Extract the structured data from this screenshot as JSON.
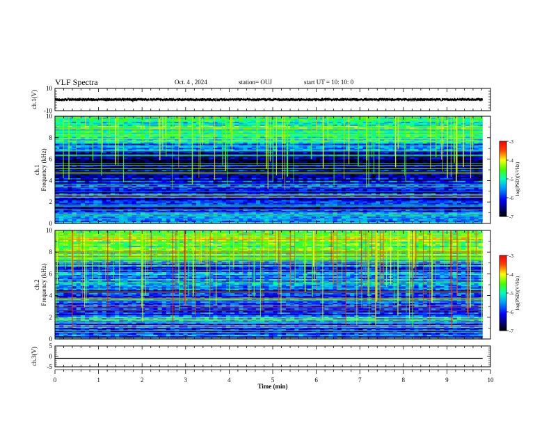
{
  "header": {
    "title": "VLF Spectra",
    "date": "Oct. 4 , 2024",
    "station": "station= OUJ",
    "start": "start UT = 10: 10: 0"
  },
  "chart_data": [
    {
      "type": "line",
      "id": "ch1-waveform",
      "ylabel": "ch.1(V)",
      "xlim": [
        0,
        10
      ],
      "ylim": [
        -10,
        10
      ],
      "yticks": [
        "10",
        "-10"
      ],
      "series": [
        {
          "values_description": "",
          "mean": 0,
          "amplitude_range": [
            -1.5,
            1.5
          ],
          "x_end": 9.82
        }
      ]
    },
    {
      "type": "heatmap",
      "id": "ch1-spectrogram",
      "ylabel": "ch.1 Frequency (kHz)",
      "xlim": [
        0,
        10
      ],
      "ylim": [
        0,
        10
      ],
      "yticks": [
        "0",
        "2",
        "4",
        "6",
        "8",
        "10"
      ],
      "data_x_end": 9.82,
      "colorbar": {
        "label": "log(PSD)(V²/Hz)",
        "range": [
          -7,
          -3
        ],
        "ticks": [
          "-3",
          "-4",
          "-5",
          "-6",
          "-7"
        ]
      }
    },
    {
      "type": "heatmap",
      "id": "ch2-spectrogram",
      "ylabel": "ch.2 Frequency (kHz)",
      "xlim": [
        0,
        10
      ],
      "ylim": [
        0,
        10
      ],
      "yticks": [
        "0",
        "2",
        "4",
        "6",
        "8",
        "10"
      ],
      "data_x_end": 9.82,
      "colorbar": {
        "label": "log(PSD)(V²/Hz)",
        "range": [
          -7,
          -3
        ],
        "ticks": [
          "-3",
          "-4",
          "-5",
          "-6",
          "-7"
        ]
      }
    },
    {
      "type": "line",
      "id": "ch3-waveform",
      "ylabel": "ch.3(V)",
      "xlim": [
        0,
        10
      ],
      "ylim": [
        -5,
        5
      ],
      "yticks": [
        "5",
        "0",
        "-5"
      ],
      "series": [
        {
          "value": -1,
          "x_end": 9.82
        }
      ]
    }
  ],
  "xaxis": {
    "label": "Time (min)",
    "ticks": [
      "0",
      "1",
      "2",
      "3",
      "4",
      "5",
      "6",
      "7",
      "8",
      "9",
      "10"
    ]
  }
}
